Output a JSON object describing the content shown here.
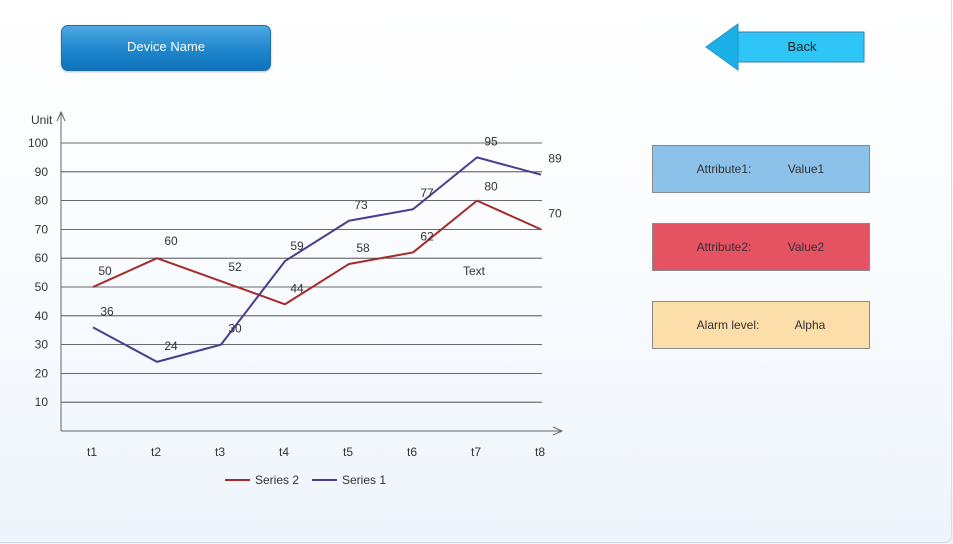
{
  "device_button": {
    "label": "Device Name"
  },
  "back_button": {
    "label": "Back"
  },
  "attributes": [
    {
      "key": "Attribute1:",
      "value": "Value1",
      "color": "#8cc2ea"
    },
    {
      "key": "Attribute2:",
      "value": "Value2",
      "color": "#e55262"
    },
    {
      "key": "Alarm level:",
      "value": "Alpha",
      "color": "#fcdeaa"
    }
  ],
  "colors": {
    "back_arrow": "#1bb0e8",
    "back_fill": "#2ec6f6",
    "device_button": "#1e86cc"
  },
  "chart_data": {
    "type": "line",
    "ylabel": "Unit",
    "xlabel": "",
    "categories": [
      "t1",
      "t2",
      "t3",
      "t4",
      "t5",
      "t6",
      "t7",
      "t8"
    ],
    "yticks": [
      10,
      20,
      30,
      40,
      50,
      60,
      70,
      80,
      90,
      100
    ],
    "ylim": [
      0,
      100
    ],
    "grid": true,
    "legend_position": "bottom",
    "annotation": "Text",
    "series": [
      {
        "name": "Series 2",
        "color": "#a52a2a",
        "values": [
          50,
          60,
          52,
          44,
          58,
          62,
          80,
          70
        ]
      },
      {
        "name": "Series 1",
        "color": "#4b3c8c",
        "values": [
          36,
          24,
          30,
          59,
          73,
          77,
          95,
          89
        ]
      }
    ]
  }
}
